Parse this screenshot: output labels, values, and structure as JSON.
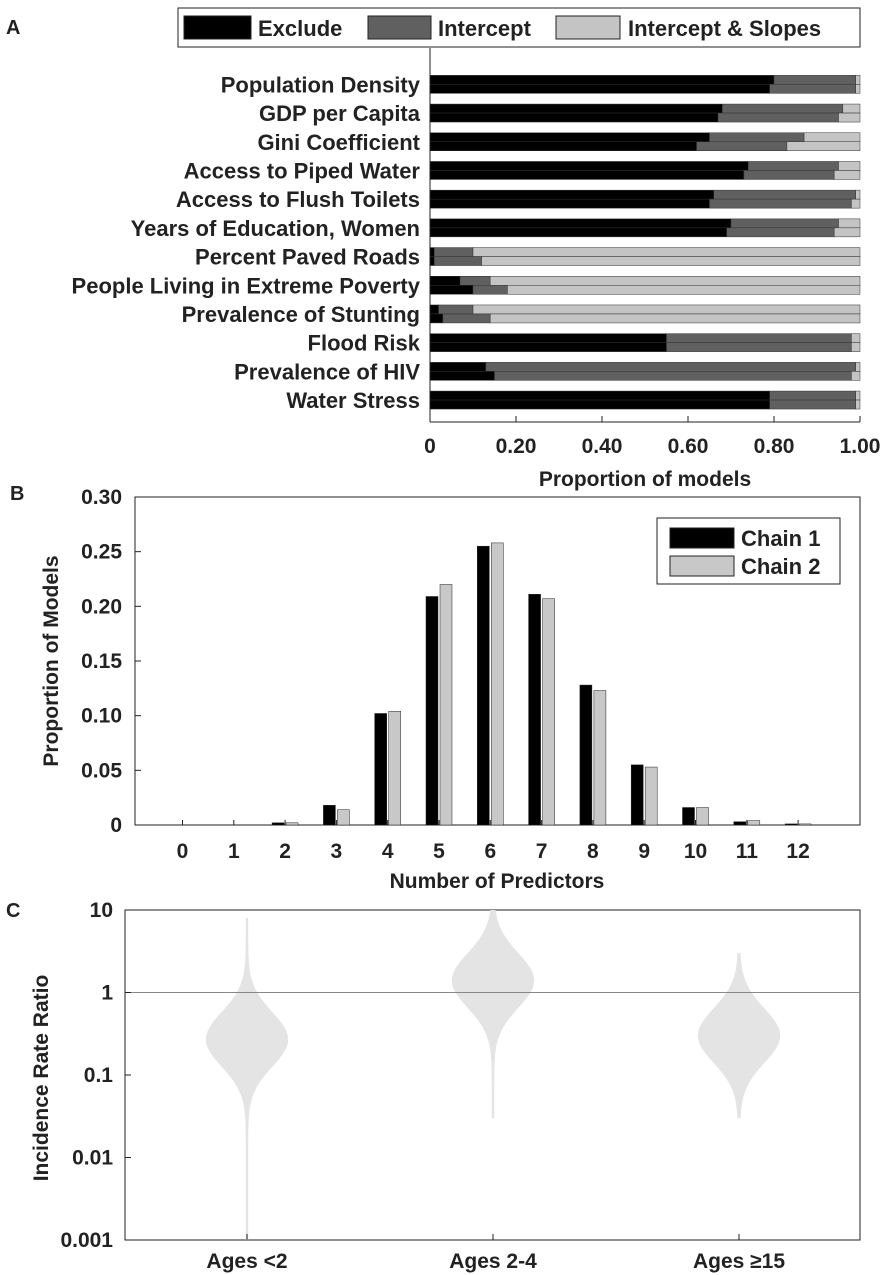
{
  "panels": {
    "a": "A",
    "b": "B",
    "c": "C"
  },
  "colors": {
    "exclude": "#000000",
    "intercept": "#606060",
    "intercept_slopes": "#c4c4c4",
    "chain1": "#000000",
    "chain2": "#c8c8c8",
    "violin": "#e4e4e4"
  },
  "chart_data": [
    {
      "type": "bar",
      "orientation": "horizontal",
      "stacked": true,
      "legend": [
        "Exclude",
        "Intercept",
        "Intercept & Slopes"
      ],
      "legend_position": "top",
      "xlabel": "Proportion of models",
      "xlim": [
        0,
        1
      ],
      "xticks": [
        "0",
        "0.20",
        "0.40",
        "0.60",
        "0.80",
        "1.00"
      ],
      "categories": [
        "Population Density",
        "GDP per Capita",
        "Gini Coefficient",
        "Access to Piped Water",
        "Access to Flush Toilets",
        "Years of Education, Women",
        "Percent Paved Roads",
        "People Living in Extreme Poverty",
        "Prevalence of Stunting",
        "Flood Risk",
        "Prevalence of HIV",
        "Water Stress"
      ],
      "chains": [
        {
          "exclude": [
            0.8,
            0.68,
            0.65,
            0.74,
            0.66,
            0.7,
            0.01,
            0.07,
            0.02,
            0.55,
            0.13,
            0.79
          ],
          "intercept": [
            0.19,
            0.28,
            0.22,
            0.21,
            0.33,
            0.25,
            0.09,
            0.07,
            0.08,
            0.43,
            0.86,
            0.2
          ],
          "intercept_slopes": [
            0.01,
            0.04,
            0.13,
            0.05,
            0.01,
            0.05,
            0.9,
            0.86,
            0.9,
            0.02,
            0.01,
            0.01
          ]
        },
        {
          "exclude": [
            0.79,
            0.67,
            0.62,
            0.73,
            0.65,
            0.69,
            0.01,
            0.1,
            0.03,
            0.55,
            0.15,
            0.79
          ],
          "intercept": [
            0.2,
            0.28,
            0.21,
            0.21,
            0.33,
            0.25,
            0.11,
            0.08,
            0.11,
            0.43,
            0.83,
            0.2
          ],
          "intercept_slopes": [
            0.01,
            0.05,
            0.17,
            0.06,
            0.02,
            0.06,
            0.88,
            0.82,
            0.86,
            0.02,
            0.02,
            0.01
          ]
        }
      ]
    },
    {
      "type": "bar",
      "xlabel": "Number of Predictors",
      "ylabel": "Proportion of Models",
      "ylim": [
        0,
        0.3
      ],
      "yticks": [
        "0",
        "0.05",
        "0.10",
        "0.15",
        "0.20",
        "0.25",
        "0.30"
      ],
      "categories": [
        "0",
        "1",
        "2",
        "3",
        "4",
        "5",
        "6",
        "7",
        "8",
        "9",
        "10",
        "11",
        "12"
      ],
      "legend_position": "top-right",
      "series": [
        {
          "name": "Chain 1",
          "values": [
            0,
            0,
            0.002,
            0.018,
            0.102,
            0.209,
            0.255,
            0.211,
            0.128,
            0.055,
            0.016,
            0.003,
            0.001
          ]
        },
        {
          "name": "Chain 2",
          "values": [
            0,
            0,
            0.002,
            0.014,
            0.104,
            0.22,
            0.258,
            0.207,
            0.123,
            0.053,
            0.016,
            0.004,
            0.001
          ]
        }
      ]
    },
    {
      "type": "violin",
      "ylabel": "Incidence Rate Ratio",
      "yscale": "log",
      "ylim": [
        0.001,
        10
      ],
      "yticks": [
        "0.001",
        "0.01",
        "0.1",
        "1",
        "10"
      ],
      "reference_line": 1,
      "categories": [
        "Ages <2",
        "Ages 2-4",
        "Ages ≥15"
      ],
      "violins": [
        {
          "median": 0.27,
          "min": 0.001,
          "max": 8
        },
        {
          "median": 1.4,
          "min": 0.03,
          "max": 10
        },
        {
          "median": 0.3,
          "min": 0.03,
          "max": 3
        }
      ]
    }
  ]
}
